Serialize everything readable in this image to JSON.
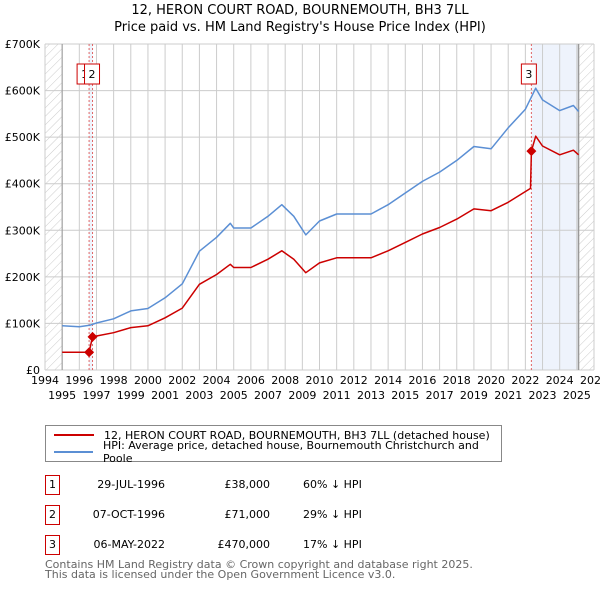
{
  "chart_data": {
    "type": "line",
    "title": "12, HERON COURT ROAD, BOURNEMOUTH, BH3 7LL",
    "subtitle": "Price paid vs. HM Land Registry's House Price Index (HPI)",
    "xlim": [
      1994,
      2026
    ],
    "ylim": [
      0,
      700000
    ],
    "y_ticks": [
      0,
      100000,
      200000,
      300000,
      400000,
      500000,
      600000,
      700000
    ],
    "y_tick_labels": [
      "£0",
      "£100K",
      "£200K",
      "£300K",
      "£400K",
      "£500K",
      "£600K",
      "£700K"
    ],
    "x_ticks": [
      1994,
      1995,
      1996,
      1997,
      1998,
      1999,
      2000,
      2001,
      2002,
      2003,
      2004,
      2005,
      2006,
      2007,
      2008,
      2009,
      2010,
      2011,
      2012,
      2013,
      2014,
      2015,
      2016,
      2017,
      2018,
      2019,
      2020,
      2021,
      2022,
      2023,
      2024,
      2025,
      2026
    ],
    "grid": true,
    "data_range": [
      1995,
      2025.1
    ],
    "series": [
      {
        "name": "12, HERON COURT ROAD, BOURNEMOUTH, BH3 7LL (detached house)",
        "color": "#cc0000",
        "points": [
          [
            1995,
            38000
          ],
          [
            1996.57,
            38000
          ],
          [
            1996.77,
            71000
          ],
          [
            1997,
            73000
          ],
          [
            1998,
            80000
          ],
          [
            1999,
            91000
          ],
          [
            2000,
            95000
          ],
          [
            2001,
            112000
          ],
          [
            2002,
            133000
          ],
          [
            2003,
            184000
          ],
          [
            2004,
            205000
          ],
          [
            2004.8,
            227000
          ],
          [
            2005,
            220000
          ],
          [
            2006,
            220000
          ],
          [
            2007,
            238000
          ],
          [
            2007.8,
            256000
          ],
          [
            2008.5,
            238000
          ],
          [
            2009.2,
            209000
          ],
          [
            2010,
            230000
          ],
          [
            2011,
            241000
          ],
          [
            2012,
            241000
          ],
          [
            2013,
            241000
          ],
          [
            2014,
            256000
          ],
          [
            2015,
            274000
          ],
          [
            2016,
            292000
          ],
          [
            2017,
            306000
          ],
          [
            2018,
            324000
          ],
          [
            2019,
            346000
          ],
          [
            2020,
            342000
          ],
          [
            2021,
            360000
          ],
          [
            2022.3,
            390000
          ],
          [
            2022.35,
            470000
          ],
          [
            2022.6,
            502000
          ],
          [
            2023,
            481000
          ],
          [
            2024,
            462000
          ],
          [
            2024.8,
            472000
          ],
          [
            2025.1,
            462000
          ]
        ]
      },
      {
        "name": "HPI: Average price, detached house, Bournemouth Christchurch and Poole",
        "color": "#5b8fd4",
        "points": [
          [
            1995,
            95000
          ],
          [
            1996,
            93000
          ],
          [
            1996.6,
            96000
          ],
          [
            1997,
            101000
          ],
          [
            1998,
            110000
          ],
          [
            1999,
            127000
          ],
          [
            2000,
            132000
          ],
          [
            2001,
            155000
          ],
          [
            2002,
            185000
          ],
          [
            2003,
            255000
          ],
          [
            2004,
            285000
          ],
          [
            2004.8,
            315000
          ],
          [
            2005,
            305000
          ],
          [
            2006,
            305000
          ],
          [
            2007,
            330000
          ],
          [
            2007.8,
            355000
          ],
          [
            2008.5,
            330000
          ],
          [
            2009.2,
            290000
          ],
          [
            2010,
            320000
          ],
          [
            2011,
            335000
          ],
          [
            2012,
            335000
          ],
          [
            2013,
            335000
          ],
          [
            2014,
            355000
          ],
          [
            2015,
            380000
          ],
          [
            2016,
            405000
          ],
          [
            2017,
            425000
          ],
          [
            2018,
            450000
          ],
          [
            2019,
            480000
          ],
          [
            2020,
            475000
          ],
          [
            2021,
            520000
          ],
          [
            2022,
            560000
          ],
          [
            2022.6,
            605000
          ],
          [
            2023,
            580000
          ],
          [
            2024,
            557000
          ],
          [
            2024.8,
            568000
          ],
          [
            2025.1,
            555000
          ]
        ]
      }
    ],
    "sales": [
      {
        "label": "1",
        "x": 1996.57,
        "y": 38000
      },
      {
        "label": "2",
        "x": 1996.77,
        "y": 71000
      },
      {
        "label": "3",
        "x": 2022.35,
        "y": 470000
      }
    ]
  },
  "legend": {
    "property": "12, HERON COURT ROAD, BOURNEMOUTH, BH3 7LL (detached house)",
    "hpi": "HPI: Average price, detached house, Bournemouth Christchurch and Poole"
  },
  "transactions": [
    {
      "num": "1",
      "date": "29-JUL-1996",
      "price": "£38,000",
      "hpi": "60% ↓ HPI"
    },
    {
      "num": "2",
      "date": "07-OCT-1996",
      "price": "£71,000",
      "hpi": "29% ↓ HPI"
    },
    {
      "num": "3",
      "date": "06-MAY-2022",
      "price": "£470,000",
      "hpi": "17% ↓ HPI"
    }
  ],
  "footer": {
    "line1": "Contains HM Land Registry data © Crown copyright and database right 2025.",
    "line2": "This data is licensed under the Open Government Licence v3.0."
  }
}
